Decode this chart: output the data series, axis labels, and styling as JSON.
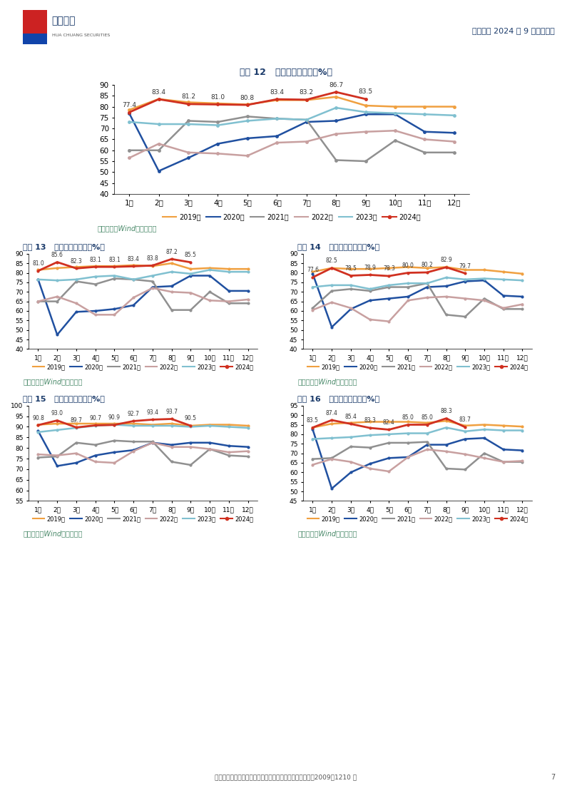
{
  "page_bg": "#ffffff",
  "header_text": "航空行业 2024 年 9 月数据点评",
  "footer_text": "证监会审核华创证券投资咨询业务资格批文号：证监许可（2009）1210 号",
  "footer_page": "7",
  "source_text": "资料来源：Wind，华创证券",
  "months": [
    "1月",
    "2月",
    "3月",
    "4月",
    "5月",
    "6月",
    "7月",
    "8月",
    "9月",
    "10月",
    "11月",
    "12月"
  ],
  "legend_labels": [
    "2019年",
    "2020年",
    "2021年",
    "2022年",
    "2023年",
    "2024年"
  ],
  "line_colors": [
    "#f0a040",
    "#2050a0",
    "#909090",
    "#c8a0a0",
    "#80c0d0",
    "#d03020"
  ],
  "charts": [
    {
      "title": "图表 12   东方航空客座率（%）",
      "ylim": [
        40,
        90
      ],
      "yticks": [
        40,
        45,
        50,
        55,
        60,
        65,
        70,
        75,
        80,
        85,
        90
      ],
      "label_2024_indices": [
        0,
        1,
        2,
        3,
        4,
        5,
        6,
        7,
        8
      ],
      "label_2024_values": [
        77.4,
        83.4,
        81.2,
        81.0,
        80.8,
        83.4,
        83.2,
        86.7,
        83.5
      ],
      "series": {
        "2019": [
          78.5,
          83.5,
          82.0,
          81.5,
          81.0,
          83.0,
          83.0,
          84.5,
          80.5,
          80.0,
          80.0,
          80.0
        ],
        "2020": [
          77.0,
          50.5,
          56.5,
          63.0,
          65.5,
          66.5,
          73.0,
          73.5,
          76.5,
          76.5,
          68.5,
          68.0
        ],
        "2021": [
          60.0,
          60.0,
          73.5,
          73.0,
          75.5,
          74.5,
          74.0,
          55.5,
          55.0,
          64.5,
          59.0,
          59.0
        ],
        "2022": [
          56.5,
          63.0,
          59.0,
          58.5,
          57.5,
          63.5,
          64.0,
          67.5,
          68.5,
          69.0,
          65.0,
          64.0
        ],
        "2023": [
          73.0,
          72.0,
          72.0,
          71.5,
          73.5,
          74.5,
          74.0,
          79.5,
          77.5,
          77.0,
          76.5,
          76.0
        ],
        "2024": [
          77.4,
          83.4,
          81.2,
          81.0,
          80.8,
          83.4,
          83.2,
          86.7,
          83.5,
          null,
          null,
          null
        ]
      }
    },
    {
      "title": "图表 13   南方航空客座率（%）",
      "ylim": [
        40,
        90
      ],
      "yticks": [
        40,
        45,
        50,
        55,
        60,
        65,
        70,
        75,
        80,
        85,
        90
      ],
      "label_2024_indices": [
        0,
        1,
        2,
        3,
        4,
        5,
        6,
        7,
        8
      ],
      "label_2024_values": [
        81.0,
        85.6,
        82.3,
        83.1,
        83.1,
        83.4,
        83.8,
        87.2,
        85.5
      ],
      "series": {
        "2019": [
          81.5,
          82.5,
          83.0,
          83.5,
          83.5,
          84.0,
          83.5,
          85.0,
          82.0,
          82.5,
          82.0,
          82.0
        ],
        "2020": [
          76.5,
          47.5,
          59.5,
          60.0,
          61.0,
          63.0,
          72.5,
          73.0,
          78.5,
          78.5,
          70.5,
          70.5
        ],
        "2021": [
          65.0,
          65.0,
          75.5,
          74.0,
          77.0,
          76.5,
          75.5,
          60.5,
          60.5,
          70.0,
          64.0,
          64.0
        ],
        "2022": [
          65.0,
          67.5,
          64.0,
          58.0,
          58.0,
          67.0,
          72.0,
          70.0,
          69.5,
          65.5,
          65.0,
          66.0
        ],
        "2023": [
          76.5,
          76.0,
          76.5,
          78.0,
          78.5,
          76.5,
          78.5,
          80.5,
          79.5,
          81.5,
          80.5,
          80.5
        ],
        "2024": [
          81.0,
          85.6,
          82.3,
          83.1,
          83.1,
          83.4,
          83.8,
          87.2,
          85.5,
          null,
          null,
          null
        ]
      }
    },
    {
      "title": "图表 14   中国国航客座率（%）",
      "ylim": [
        40,
        90
      ],
      "yticks": [
        40,
        45,
        50,
        55,
        60,
        65,
        70,
        75,
        80,
        85,
        90
      ],
      "label_2024_indices": [
        0,
        1,
        2,
        3,
        4,
        5,
        6,
        7,
        8
      ],
      "label_2024_values": [
        77.6,
        82.5,
        78.5,
        78.9,
        78.3,
        80.0,
        80.2,
        82.9,
        79.7
      ],
      "series": {
        "2019": [
          80.5,
          82.5,
          82.0,
          82.0,
          82.5,
          83.0,
          82.5,
          83.0,
          81.5,
          81.5,
          80.5,
          79.5
        ],
        "2020": [
          79.5,
          51.5,
          61.0,
          65.5,
          66.5,
          67.5,
          72.5,
          73.0,
          75.5,
          76.0,
          68.0,
          67.5
        ],
        "2021": [
          61.5,
          70.5,
          71.5,
          70.5,
          72.5,
          72.5,
          74.5,
          58.0,
          57.0,
          66.5,
          61.0,
          61.0
        ],
        "2022": [
          60.5,
          64.5,
          61.5,
          55.5,
          54.5,
          65.5,
          67.0,
          67.5,
          66.5,
          65.5,
          61.5,
          63.5
        ],
        "2023": [
          72.5,
          73.5,
          73.5,
          71.5,
          73.5,
          74.5,
          74.5,
          77.5,
          76.5,
          77.0,
          76.5,
          76.0
        ],
        "2024": [
          77.6,
          82.5,
          78.5,
          78.9,
          78.3,
          80.0,
          80.2,
          82.9,
          79.7,
          null,
          null,
          null
        ]
      }
    },
    {
      "title": "图表 15   春秋航空客座率（%）",
      "ylim": [
        55,
        100
      ],
      "yticks": [
        55,
        60,
        65,
        70,
        75,
        80,
        85,
        90,
        95,
        100
      ],
      "label_2024_indices": [
        0,
        1,
        2,
        3,
        4,
        5,
        6,
        7,
        8
      ],
      "label_2024_values": [
        90.8,
        93.0,
        89.7,
        90.7,
        90.9,
        92.7,
        93.4,
        93.7,
        90.5
      ],
      "series": {
        "2019": [
          91.0,
          91.5,
          91.5,
          91.5,
          91.5,
          91.5,
          91.0,
          91.5,
          90.5,
          91.0,
          91.0,
          90.5
        ],
        "2020": [
          88.0,
          71.5,
          73.0,
          76.5,
          78.0,
          79.0,
          82.5,
          81.5,
          82.5,
          82.5,
          81.0,
          80.5
        ],
        "2021": [
          75.5,
          76.0,
          82.5,
          81.5,
          83.5,
          83.0,
          83.0,
          73.5,
          72.0,
          79.5,
          76.5,
          76.0
        ],
        "2022": [
          77.0,
          76.5,
          77.5,
          73.5,
          73.0,
          78.5,
          82.5,
          80.5,
          80.5,
          79.5,
          78.0,
          78.5
        ],
        "2023": [
          87.5,
          88.5,
          89.5,
          90.5,
          91.0,
          90.5,
          90.5,
          90.5,
          90.0,
          90.5,
          90.0,
          89.5
        ],
        "2024": [
          90.8,
          93.0,
          89.7,
          90.7,
          90.9,
          92.7,
          93.4,
          93.7,
          90.5,
          null,
          null,
          null
        ]
      }
    },
    {
      "title": "图表 16   吉祥航空客座率（%）",
      "ylim": [
        45,
        95
      ],
      "yticks": [
        45,
        50,
        55,
        60,
        65,
        70,
        75,
        80,
        85,
        90,
        95
      ],
      "label_2024_indices": [
        0,
        1,
        2,
        3,
        4,
        5,
        6,
        7,
        8
      ],
      "label_2024_values": [
        83.5,
        87.4,
        85.4,
        83.3,
        82.4,
        85.0,
        85.0,
        88.3,
        83.7
      ],
      "series": {
        "2019": [
          83.5,
          85.5,
          86.0,
          86.5,
          86.5,
          86.5,
          86.0,
          87.0,
          84.5,
          85.0,
          84.5,
          84.0
        ],
        "2020": [
          82.5,
          51.5,
          60.0,
          64.5,
          67.5,
          68.0,
          74.5,
          74.5,
          77.5,
          78.0,
          72.0,
          71.5
        ],
        "2021": [
          67.0,
          67.5,
          73.5,
          73.0,
          75.5,
          75.5,
          76.0,
          62.0,
          61.5,
          70.0,
          65.5,
          65.5
        ],
        "2022": [
          64.0,
          67.0,
          65.5,
          62.0,
          60.5,
          68.0,
          72.0,
          71.0,
          69.5,
          67.5,
          65.5,
          66.0
        ],
        "2023": [
          77.5,
          78.0,
          78.5,
          79.5,
          80.0,
          80.5,
          80.5,
          83.5,
          81.5,
          82.5,
          82.0,
          82.0
        ],
        "2024": [
          83.5,
          87.4,
          85.4,
          83.3,
          82.4,
          85.0,
          85.0,
          88.3,
          83.7,
          null,
          null,
          null
        ]
      }
    }
  ]
}
